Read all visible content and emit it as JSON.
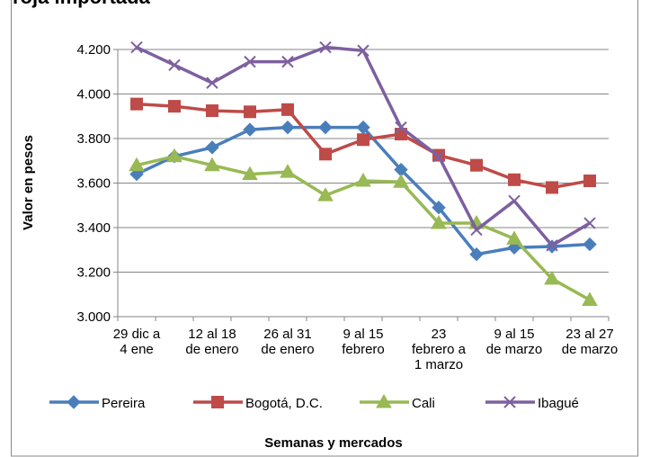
{
  "chart_data": {
    "type": "line",
    "title": "roja importada",
    "y_label": "Valor en pesos",
    "x_label": "Semanas y mercados",
    "categories": [
      "29 dic a\n4 ene",
      null,
      "12 al 18\nde enero",
      null,
      "26 al 31\nde enero",
      null,
      "9 al 15\nfebrero",
      null,
      "23\nfebrero a\n1 marzo",
      null,
      "9 al 15\nde marzo",
      null,
      "23 al 27\nde marzo"
    ],
    "series": [
      {
        "name": "Pereira",
        "color": "#4a7ebb",
        "marker": "diamond",
        "values": [
          3640,
          3720,
          3760,
          3840,
          3850,
          3850,
          3850,
          3660,
          3490,
          3280,
          3310,
          3315,
          3325
        ]
      },
      {
        "name": "Bogotá, D.C.",
        "color": "#be4b48",
        "marker": "square",
        "values": [
          3955,
          3945,
          3925,
          3920,
          3930,
          3730,
          3795,
          3820,
          3725,
          3680,
          3615,
          3580,
          3610
        ]
      },
      {
        "name": "Cali",
        "color": "#98b954",
        "marker": "triangle",
        "values": [
          3680,
          3720,
          3680,
          3640,
          3650,
          3545,
          3610,
          3605,
          3420,
          3420,
          3350,
          3170,
          3075
        ]
      },
      {
        "name": "Ibagué",
        "color": "#7d60a0",
        "marker": "x",
        "values": [
          4210,
          4130,
          4050,
          4145,
          4145,
          4210,
          4195,
          3850,
          3720,
          3390,
          3520,
          3320,
          3420
        ]
      }
    ],
    "ylim": [
      3000,
      4200
    ],
    "yticks": [
      {
        "value": 3000,
        "label": "3.000"
      },
      {
        "value": 3200,
        "label": "3.200"
      },
      {
        "value": 3400,
        "label": "3.400"
      },
      {
        "value": 3600,
        "label": "3.600"
      },
      {
        "value": 3800,
        "label": "3.800"
      },
      {
        "value": 4000,
        "label": "4.000"
      },
      {
        "value": 4200,
        "label": "4.200"
      }
    ],
    "grid": true,
    "legend": "bottom"
  }
}
